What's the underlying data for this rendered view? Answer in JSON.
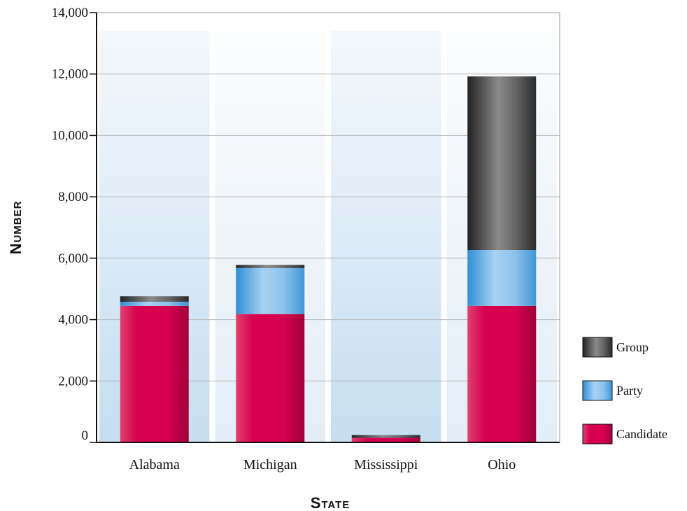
{
  "chart_data": {
    "type": "bar",
    "stacked": true,
    "title": "",
    "xlabel": "State",
    "ylabel": "Number",
    "categories": [
      "Alabama",
      "Michigan",
      "Mississippi",
      "Ohio"
    ],
    "ylim": [
      0,
      14000
    ],
    "yticks": [
      0,
      2000,
      4000,
      6000,
      8000,
      10000,
      12000,
      14000
    ],
    "ytick_labels": [
      "0",
      "2,000",
      "4,000",
      "6,000",
      "8,000",
      "10,000",
      "12,000",
      "14,000"
    ],
    "series": [
      {
        "name": "Candidate",
        "color": "#d6004f",
        "values": [
          4450,
          4180,
          150,
          4450
        ]
      },
      {
        "name": "Party",
        "color": "#6aaee0",
        "values": [
          130,
          1500,
          0,
          1820
        ]
      },
      {
        "name": "Group",
        "color": "#555555",
        "values": [
          180,
          100,
          90,
          5650
        ]
      }
    ],
    "legend_order": [
      "Group",
      "Party",
      "Candidate"
    ],
    "legend_position": "right",
    "grid": true
  }
}
